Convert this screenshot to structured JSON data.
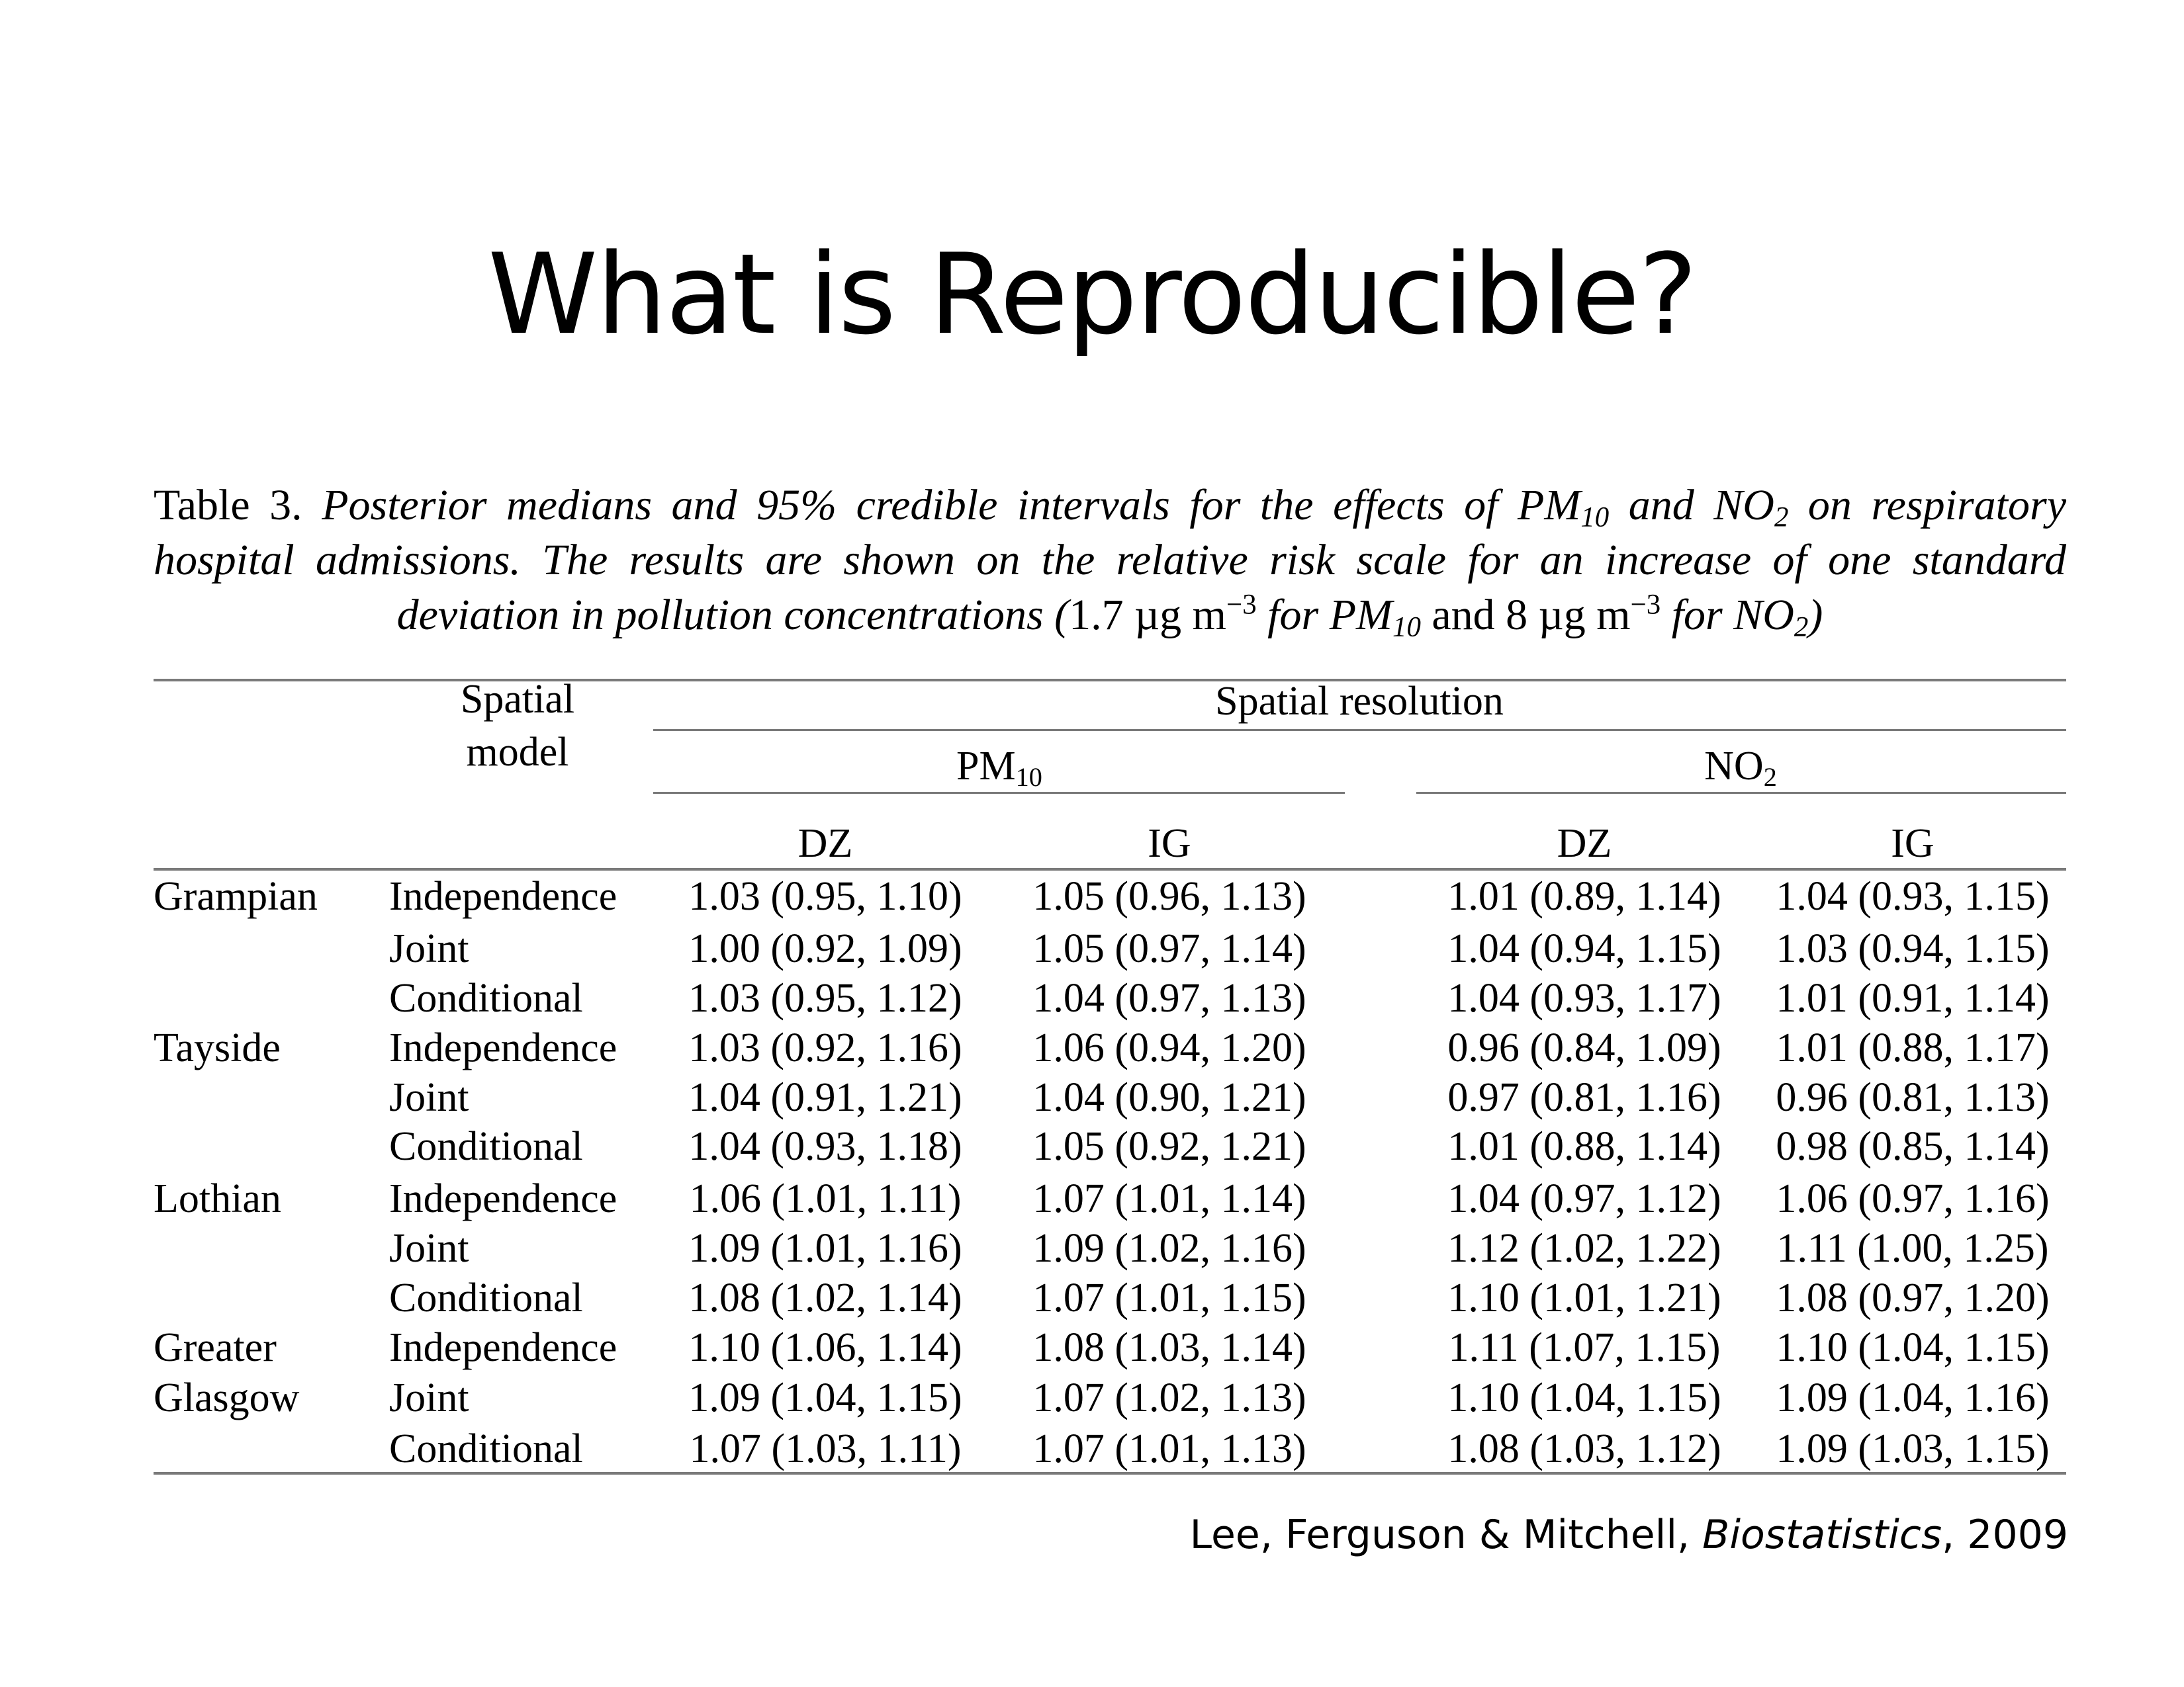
{
  "slide": {
    "title": "What is Reproducible?",
    "citation": {
      "authors": "Lee, Ferguson & Mitchell, ",
      "journal": "Biostatistics",
      "year": ", 2009"
    }
  },
  "caption": {
    "label": "Table 3.",
    "text_1": "Posterior medians and 95% credible intervals for the effects of PM",
    "sub_1": "10",
    "text_2": " and NO",
    "sub_2": "2",
    "text_3": " on respiratory hospital admissions. The results are shown on the relative risk scale for an increase of one standard deviation in pollution concentrations (",
    "text_4": "1.7 µg m",
    "sup_1": "−3",
    "text_5": " for PM",
    "sub_3": "10",
    "text_6": " and 8 µg m",
    "sup_2": "−3",
    "text_7": " for NO",
    "sub_4": "2",
    "text_8": ")"
  },
  "table": {
    "header": {
      "spatial_model_line1": "Spatial",
      "spatial_model_line2": "model",
      "spatial_resolution": "Spatial resolution",
      "pm_label": "PM",
      "pm_sub": "10",
      "no_label": "NO",
      "no_sub": "2",
      "dz": "DZ",
      "ig": "IG"
    },
    "rows": [
      {
        "region": "Grampian",
        "model": "Independence",
        "pm_dz": "1.03 (0.95, 1.10)",
        "pm_ig": "1.05 (0.96, 1.13)",
        "no_dz": "1.01 (0.89, 1.14)",
        "no_ig": "1.04 (0.93, 1.15)"
      },
      {
        "region": "",
        "model": "Joint",
        "pm_dz": "1.00 (0.92, 1.09)",
        "pm_ig": "1.05 (0.97, 1.14)",
        "no_dz": "1.04 (0.94, 1.15)",
        "no_ig": "1.03 (0.94, 1.15)"
      },
      {
        "region": "",
        "model": "Conditional",
        "pm_dz": "1.03 (0.95, 1.12)",
        "pm_ig": "1.04 (0.97, 1.13)",
        "no_dz": "1.04 (0.93, 1.17)",
        "no_ig": "1.01 (0.91, 1.14)"
      },
      {
        "region": "Tayside",
        "model": "Independence",
        "pm_dz": "1.03 (0.92, 1.16)",
        "pm_ig": "1.06 (0.94, 1.20)",
        "no_dz": "0.96 (0.84, 1.09)",
        "no_ig": "1.01 (0.88, 1.17)"
      },
      {
        "region": "",
        "model": "Joint",
        "pm_dz": "1.04 (0.91, 1.21)",
        "pm_ig": "1.04 (0.90, 1.21)",
        "no_dz": "0.97 (0.81, 1.16)",
        "no_ig": "0.96 (0.81, 1.13)"
      },
      {
        "region": "",
        "model": "Conditional",
        "pm_dz": "1.04 (0.93, 1.18)",
        "pm_ig": "1.05 (0.92, 1.21)",
        "no_dz": "1.01 (0.88, 1.14)",
        "no_ig": "0.98 (0.85, 1.14)"
      },
      {
        "region": "Lothian",
        "model": "Independence",
        "pm_dz": "1.06 (1.01, 1.11)",
        "pm_ig": "1.07 (1.01, 1.14)",
        "no_dz": "1.04 (0.97, 1.12)",
        "no_ig": "1.06 (0.97, 1.16)"
      },
      {
        "region": "",
        "model": "Joint",
        "pm_dz": "1.09 (1.01, 1.16)",
        "pm_ig": "1.09 (1.02, 1.16)",
        "no_dz": "1.12 (1.02, 1.22)",
        "no_ig": "1.11 (1.00, 1.25)"
      },
      {
        "region": "",
        "model": "Conditional",
        "pm_dz": "1.08 (1.02, 1.14)",
        "pm_ig": "1.07 (1.01, 1.15)",
        "no_dz": "1.10 (1.01, 1.21)",
        "no_ig": "1.08 (0.97, 1.20)"
      },
      {
        "region": "Greater",
        "model": "Independence",
        "pm_dz": "1.10 (1.06, 1.14)",
        "pm_ig": "1.08 (1.03, 1.14)",
        "no_dz": "1.11 (1.07, 1.15)",
        "no_ig": "1.10 (1.04, 1.15)"
      },
      {
        "region": "Glasgow",
        "model": "Joint",
        "pm_dz": "1.09 (1.04, 1.15)",
        "pm_ig": "1.07 (1.02, 1.13)",
        "no_dz": "1.10 (1.04, 1.15)",
        "no_ig": "1.09 (1.04, 1.16)"
      },
      {
        "region": "",
        "model": "Conditional",
        "pm_dz": "1.07 (1.03, 1.11)",
        "pm_ig": "1.07 (1.01, 1.13)",
        "no_dz": "1.08 (1.03, 1.12)",
        "no_ig": "1.09 (1.03, 1.15)"
      }
    ]
  }
}
